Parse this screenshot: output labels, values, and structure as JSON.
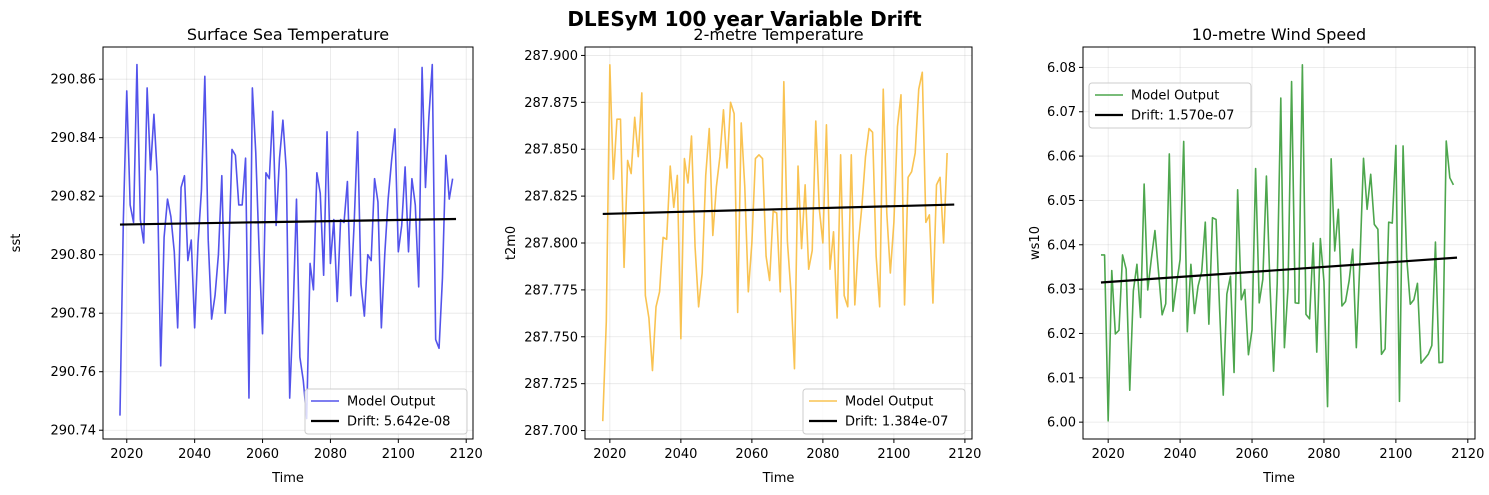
{
  "suptitle": "DLESyM 100 year Variable Drift",
  "chart_data": [
    {
      "type": "line",
      "title": "Surface Sea Temperature",
      "xlabel": "Time",
      "ylabel": "sst",
      "xlim": [
        2013,
        2122
      ],
      "ylim": [
        290.737,
        290.871
      ],
      "xticks": [
        2020,
        2040,
        2060,
        2080,
        2100,
        2120
      ],
      "yticks": [
        290.74,
        290.76,
        290.78,
        290.8,
        290.82,
        290.84,
        290.86
      ],
      "ytick_decimals": 2,
      "grid": true,
      "legend_position": "lower-right",
      "series": [
        {
          "name": "Model Output",
          "color": "#3535e8",
          "x_start": 2018,
          "x_step": 1,
          "values": [
            290.745,
            290.812,
            290.856,
            290.817,
            290.811,
            290.865,
            290.812,
            290.804,
            290.857,
            290.829,
            290.848,
            290.827,
            290.762,
            290.806,
            290.819,
            290.813,
            290.801,
            290.775,
            290.823,
            290.827,
            290.798,
            290.805,
            290.775,
            290.804,
            290.822,
            290.861,
            290.805,
            290.778,
            290.786,
            290.8,
            290.827,
            290.78,
            290.799,
            290.836,
            290.834,
            290.817,
            290.817,
            290.833,
            290.751,
            290.857,
            290.835,
            290.801,
            290.773,
            290.828,
            290.826,
            290.849,
            290.81,
            290.833,
            290.846,
            290.829,
            290.751,
            290.78,
            290.819,
            290.765,
            290.757,
            290.744,
            290.797,
            290.788,
            290.828,
            290.821,
            290.793,
            290.842,
            290.797,
            290.812,
            290.784,
            290.812,
            290.811,
            290.825,
            290.786,
            290.811,
            290.842,
            290.79,
            290.779,
            290.8,
            290.798,
            290.826,
            290.818,
            290.775,
            290.8,
            290.819,
            290.832,
            290.843,
            290.801,
            290.81,
            290.83,
            290.801,
            290.826,
            290.817,
            290.789,
            290.864,
            290.823,
            290.847,
            290.865,
            290.771,
            290.768,
            290.792,
            290.834,
            290.819,
            290.826
          ]
        },
        {
          "name": "Drift: 5.642e-08",
          "color": "#000000",
          "x": [
            2018,
            2117
          ],
          "y": [
            290.8103,
            290.8122
          ]
        }
      ]
    },
    {
      "type": "line",
      "title": "2-metre Temperature",
      "xlabel": "Time",
      "ylabel": "t2m0",
      "xlim": [
        2013,
        2122
      ],
      "ylim": [
        287.6955,
        287.9045
      ],
      "xticks": [
        2020,
        2040,
        2060,
        2080,
        2100,
        2120
      ],
      "yticks": [
        287.7,
        287.725,
        287.75,
        287.775,
        287.8,
        287.825,
        287.85,
        287.875,
        287.9
      ],
      "ytick_decimals": 3,
      "grid": true,
      "legend_position": "lower-right",
      "series": [
        {
          "name": "Model Output",
          "color": "#f8b934",
          "x_start": 2018,
          "x_step": 1,
          "values": [
            287.705,
            287.758,
            287.895,
            287.834,
            287.866,
            287.866,
            287.787,
            287.844,
            287.837,
            287.867,
            287.846,
            287.88,
            287.772,
            287.76,
            287.732,
            287.766,
            287.774,
            287.803,
            287.802,
            287.841,
            287.819,
            287.836,
            287.749,
            287.845,
            287.832,
            287.857,
            287.798,
            287.766,
            287.784,
            287.836,
            287.861,
            287.804,
            287.83,
            287.846,
            287.871,
            287.84,
            287.875,
            287.869,
            287.763,
            287.864,
            287.83,
            287.774,
            287.8,
            287.845,
            287.847,
            287.845,
            287.793,
            287.78,
            287.817,
            287.816,
            287.774,
            287.886,
            287.801,
            287.774,
            287.733,
            287.841,
            287.797,
            287.831,
            287.786,
            287.796,
            287.865,
            287.818,
            287.8,
            287.863,
            287.786,
            287.806,
            287.76,
            287.847,
            287.772,
            287.766,
            287.847,
            287.767,
            287.8,
            287.82,
            287.846,
            287.861,
            287.859,
            287.793,
            287.766,
            287.882,
            287.816,
            287.784,
            287.811,
            287.862,
            287.879,
            287.767,
            287.835,
            287.838,
            287.848,
            287.882,
            287.891,
            287.811,
            287.815,
            287.768,
            287.831,
            287.835,
            287.8,
            287.848
          ]
        },
        {
          "name": "Drift: 1.384e-07",
          "color": "#000000",
          "x": [
            2018,
            2117
          ],
          "y": [
            287.8155,
            287.8205
          ]
        }
      ]
    },
    {
      "type": "line",
      "title": "10-metre Wind Speed",
      "xlabel": "Time",
      "ylabel": "ws10",
      "xlim": [
        2013,
        2122
      ],
      "ylim": [
        5.9962,
        6.0846
      ],
      "xticks": [
        2020,
        2040,
        2060,
        2080,
        2100,
        2120
      ],
      "yticks": [
        6.0,
        6.01,
        6.02,
        6.03,
        6.04,
        6.05,
        6.06,
        6.07,
        6.08
      ],
      "ytick_decimals": 2,
      "grid": true,
      "legend_position": "upper-left",
      "series": [
        {
          "name": "Model Output",
          "color": "#2e962e",
          "x_start": 2018,
          "x_step": 1,
          "values": [
            6.0377,
            6.0377,
            6.0003,
            6.0342,
            6.0199,
            6.0207,
            6.0377,
            6.0345,
            6.0072,
            6.0296,
            6.0356,
            6.0236,
            6.0537,
            6.0298,
            6.0368,
            6.0432,
            6.0339,
            6.0242,
            6.0267,
            6.0605,
            6.025,
            6.0311,
            6.0367,
            6.0633,
            6.0204,
            6.0356,
            6.0245,
            6.0307,
            6.0339,
            6.0451,
            6.0221,
            6.0461,
            6.0457,
            6.0252,
            6.0061,
            6.0289,
            6.0329,
            6.0112,
            6.0524,
            6.0276,
            6.0299,
            6.0152,
            6.0208,
            6.0572,
            6.0269,
            6.0322,
            6.0555,
            6.0306,
            6.0115,
            6.0312,
            6.0731,
            6.0168,
            6.0302,
            6.0768,
            6.0269,
            6.0268,
            6.0806,
            6.0243,
            6.0233,
            6.0404,
            6.0158,
            6.0414,
            6.0317,
            6.0035,
            6.0594,
            6.0386,
            6.048,
            6.0262,
            6.0272,
            6.0319,
            6.039,
            6.0168,
            6.0362,
            6.0595,
            6.048,
            6.0559,
            6.0446,
            6.0435,
            6.0153,
            6.0165,
            6.0451,
            6.0449,
            6.0624,
            6.0047,
            6.0623,
            6.0372,
            6.0266,
            6.0276,
            6.0313,
            6.0133,
            6.0143,
            6.0153,
            6.0173,
            6.0406,
            6.0134,
            6.0135,
            6.0634,
            6.0551,
            6.0535
          ]
        },
        {
          "name": "Drift: 1.570e-07",
          "color": "#000000",
          "x": [
            2018,
            2117
          ],
          "y": [
            6.0315,
            6.0371
          ]
        }
      ]
    }
  ]
}
